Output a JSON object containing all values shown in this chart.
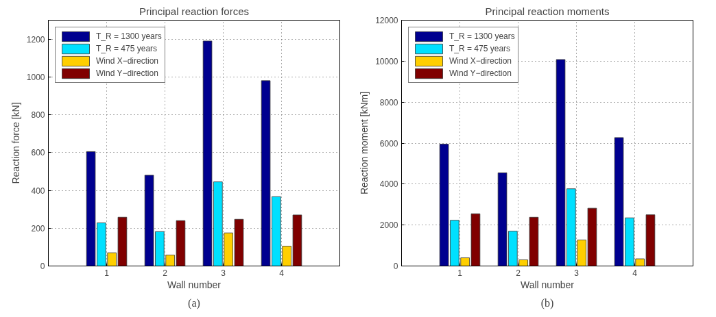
{
  "chart_data": [
    {
      "type": "bar",
      "title": "Principal reaction forces",
      "xlabel": "Wall number",
      "ylabel": "Reaction force [kN]",
      "annotations": [
        "(a)"
      ],
      "categories": [
        "1",
        "2",
        "3",
        "4"
      ],
      "ylim": [
        0,
        1300
      ],
      "yticks": [
        0,
        200,
        400,
        600,
        800,
        1000,
        1200
      ],
      "grid": true,
      "legend": "top left",
      "series": [
        {
          "name": "T_R = 1300 years",
          "color": "#00008f",
          "values": [
            605,
            480,
            1190,
            980
          ]
        },
        {
          "name": "T_R = 475 years",
          "color": "#00e0ff",
          "values": [
            228,
            182,
            445,
            367
          ]
        },
        {
          "name": "Wind X−direction",
          "color": "#ffcf00",
          "values": [
            70,
            58,
            175,
            105
          ]
        },
        {
          "name": "Wind Y−direction",
          "color": "#800000",
          "values": [
            258,
            240,
            247,
            270
          ]
        }
      ]
    },
    {
      "type": "bar",
      "title": "Principal reaction moments",
      "xlabel": "Wall number",
      "ylabel": "Reaction moment [kNm]",
      "annotations": [
        "(b)"
      ],
      "categories": [
        "1",
        "2",
        "3",
        "4"
      ],
      "ylim": [
        0,
        12000
      ],
      "yticks": [
        0,
        2000,
        4000,
        6000,
        8000,
        10000,
        12000
      ],
      "grid": true,
      "legend": "top left",
      "series": [
        {
          "name": "T_R = 1300 years",
          "color": "#00008f",
          "values": [
            5950,
            4550,
            10080,
            6270
          ]
        },
        {
          "name": "T_R = 475 years",
          "color": "#00e0ff",
          "values": [
            2230,
            1700,
            3770,
            2350
          ]
        },
        {
          "name": "Wind X−direction",
          "color": "#ffcf00",
          "values": [
            400,
            300,
            1270,
            350
          ]
        },
        {
          "name": "Wind Y−direction",
          "color": "#800000",
          "values": [
            2550,
            2380,
            2820,
            2500
          ]
        }
      ]
    }
  ]
}
